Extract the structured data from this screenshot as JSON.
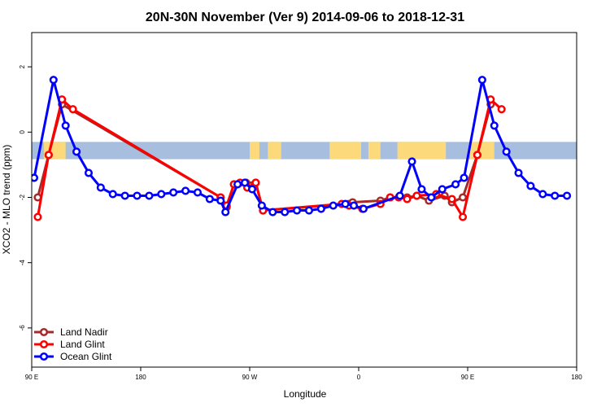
{
  "chart_data": {
    "type": "line",
    "title": "20N-30N November (Ver 9)   2014-09-06 to 2018-12-31",
    "xlabel": "Longitude",
    "ylabel": "XCO2 - MLO trend (ppm)",
    "xlim": [
      90,
      540
    ],
    "ylim": [
      -7.2,
      3.05
    ],
    "x_ticks": [
      {
        "value": 90,
        "label": "90 E"
      },
      {
        "value": 180,
        "label": "180"
      },
      {
        "value": 270,
        "label": "90 W"
      },
      {
        "value": 360,
        "label": "0"
      },
      {
        "value": 450,
        "label": "90 E"
      },
      {
        "value": 540,
        "label": "180"
      }
    ],
    "y_ticks": [
      {
        "value": 2,
        "label": "2"
      },
      {
        "value": 0,
        "label": "0"
      },
      {
        "value": -2,
        "label": "-2"
      },
      {
        "value": -4,
        "label": "-4"
      },
      {
        "value": -6,
        "label": "-6"
      }
    ],
    "map_band": {
      "y_top": -0.3,
      "y_bottom": -0.83,
      "ocean_color": "#a7bedf",
      "land_color": "#fcd97a"
    },
    "legend": {
      "position": "bottom-left"
    },
    "series": [
      {
        "name": "Land Nadir",
        "color": "#a52a2a",
        "points": [
          [
            95,
            -2.0
          ],
          [
            104,
            -0.7
          ],
          [
            115,
            0.85
          ],
          [
            246,
            -2.0
          ],
          [
            251,
            -2.3
          ],
          [
            257,
            -1.6
          ],
          [
            267,
            -1.55
          ],
          [
            275,
            -1.55
          ],
          [
            281,
            -2.4
          ],
          [
            352,
            -2.2
          ],
          [
            355,
            -2.15
          ],
          [
            378,
            -2.1
          ],
          [
            386,
            -2.0
          ],
          [
            400,
            -2.0
          ],
          [
            408,
            -1.95
          ],
          [
            418,
            -2.1
          ],
          [
            431,
            -1.95
          ],
          [
            437,
            -2.15
          ],
          [
            446,
            -2.0
          ],
          [
            458,
            -0.7
          ],
          [
            469,
            0.85
          ]
        ]
      },
      {
        "name": "Land Glint",
        "color": "#ff0000",
        "points": [
          [
            95,
            -2.6
          ],
          [
            104,
            -0.7
          ],
          [
            115,
            1.0
          ],
          [
            124,
            0.7
          ],
          [
            246,
            -2.0
          ],
          [
            251,
            -2.25
          ],
          [
            257,
            -1.6
          ],
          [
            262,
            -1.55
          ],
          [
            268,
            -1.7
          ],
          [
            275,
            -1.55
          ],
          [
            281,
            -2.4
          ],
          [
            346,
            -2.2
          ],
          [
            352,
            -2.25
          ],
          [
            363,
            -2.35
          ],
          [
            378,
            -2.2
          ],
          [
            386,
            -2.0
          ],
          [
            393,
            -2.0
          ],
          [
            400,
            -2.05
          ],
          [
            408,
            -1.95
          ],
          [
            424,
            -1.9
          ],
          [
            437,
            -2.05
          ],
          [
            446,
            -2.6
          ],
          [
            458,
            -0.7
          ],
          [
            469,
            1.0
          ],
          [
            478,
            0.7
          ]
        ]
      },
      {
        "name": "Ocean Glint",
        "color": "#0000ff",
        "points": [
          [
            92,
            -1.4
          ],
          [
            108,
            1.6
          ],
          [
            118,
            0.2
          ],
          [
            127,
            -0.6
          ],
          [
            137,
            -1.25
          ],
          [
            147,
            -1.7
          ],
          [
            157,
            -1.9
          ],
          [
            167,
            -1.95
          ],
          [
            177,
            -1.95
          ],
          [
            187,
            -1.95
          ],
          [
            197,
            -1.9
          ],
          [
            207,
            -1.85
          ],
          [
            217,
            -1.8
          ],
          [
            227,
            -1.85
          ],
          [
            237,
            -2.05
          ],
          [
            246,
            -2.1
          ],
          [
            250,
            -2.45
          ],
          [
            260,
            -1.6
          ],
          [
            266,
            -1.55
          ],
          [
            272,
            -1.75
          ],
          [
            280,
            -2.25
          ],
          [
            289,
            -2.45
          ],
          [
            299,
            -2.45
          ],
          [
            309,
            -2.4
          ],
          [
            319,
            -2.4
          ],
          [
            329,
            -2.35
          ],
          [
            339,
            -2.25
          ],
          [
            349,
            -2.2
          ],
          [
            356,
            -2.25
          ],
          [
            364,
            -2.35
          ],
          [
            394,
            -1.95
          ],
          [
            404,
            -0.9
          ],
          [
            412,
            -1.75
          ],
          [
            420,
            -2.0
          ],
          [
            429,
            -1.75
          ],
          [
            440,
            -1.6
          ],
          [
            447,
            -1.4
          ],
          [
            462,
            1.6
          ],
          [
            472,
            0.2
          ],
          [
            482,
            -0.6
          ],
          [
            492,
            -1.25
          ],
          [
            502,
            -1.65
          ],
          [
            512,
            -1.9
          ],
          [
            522,
            -1.95
          ],
          [
            532,
            -1.95
          ]
        ]
      }
    ]
  }
}
